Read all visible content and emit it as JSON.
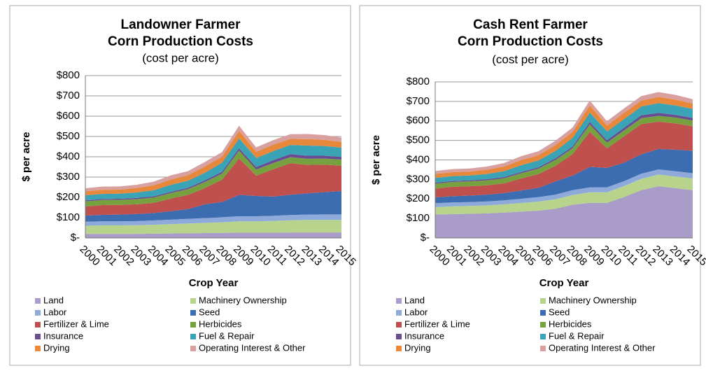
{
  "chart_data": [
    {
      "type": "stacked-area",
      "title": [
        "Landowner Farmer",
        "Corn Production Costs"
      ],
      "subtitle": "(cost per acre)",
      "y_label": "$ per acre",
      "x_label": "Crop Year",
      "categories": [
        "2000",
        "2001",
        "2002",
        "2003",
        "2004",
        "2005",
        "2006",
        "2007",
        "2008",
        "2009",
        "2010",
        "2011",
        "2012",
        "2013",
        "2014",
        "2015"
      ],
      "ylim": [
        0,
        800
      ],
      "yticks": [
        {
          "value": 0,
          "label": "$-"
        },
        {
          "value": 100,
          "label": "$100"
        },
        {
          "value": 200,
          "label": "$200"
        },
        {
          "value": 300,
          "label": "$300"
        },
        {
          "value": 400,
          "label": "$400"
        },
        {
          "value": 500,
          "label": "$500"
        },
        {
          "value": 600,
          "label": "$600"
        },
        {
          "value": 700,
          "label": "$700"
        },
        {
          "value": 800,
          "label": "$800"
        }
      ],
      "grid": true,
      "series": [
        {
          "name": "Land",
          "color": "#a99cc8",
          "values": [
            20,
            20,
            20,
            20,
            21,
            22,
            23,
            24,
            25,
            26,
            26,
            26,
            27,
            27,
            27,
            27
          ]
        },
        {
          "name": "Machinery Ownership",
          "color": "#b8d38c",
          "values": [
            40,
            42,
            42,
            43,
            44,
            46,
            48,
            50,
            52,
            56,
            56,
            58,
            60,
            62,
            62,
            62
          ]
        },
        {
          "name": "Labor",
          "color": "#8eaadb",
          "values": [
            20,
            20,
            20,
            20,
            21,
            22,
            23,
            24,
            25,
            25,
            25,
            25,
            26,
            26,
            27,
            27
          ]
        },
        {
          "name": "Seed",
          "color": "#3d6db1",
          "values": [
            30,
            32,
            33,
            35,
            37,
            42,
            48,
            68,
            75,
            105,
            100,
            95,
            100,
            105,
            110,
            115
          ]
        },
        {
          "name": "Fertilizer & Lime",
          "color": "#c0504d",
          "values": [
            45,
            48,
            48,
            48,
            50,
            62,
            70,
            80,
            110,
            180,
            100,
            135,
            155,
            140,
            135,
            125
          ]
        },
        {
          "name": "Herbicides",
          "color": "#77a13f",
          "values": [
            25,
            25,
            25,
            25,
            26,
            27,
            28,
            30,
            30,
            38,
            30,
            30,
            30,
            30,
            30,
            30
          ]
        },
        {
          "name": "Insurance",
          "color": "#6a4c93",
          "values": [
            5,
            5,
            5,
            6,
            6,
            6,
            7,
            8,
            9,
            12,
            12,
            14,
            15,
            15,
            14,
            13
          ]
        },
        {
          "name": "Fuel & Repair",
          "color": "#3aa3b5",
          "values": [
            25,
            25,
            25,
            27,
            30,
            35,
            35,
            38,
            45,
            48,
            45,
            45,
            45,
            50,
            48,
            46
          ]
        },
        {
          "name": "Drying",
          "color": "#e8883a",
          "values": [
            20,
            20,
            20,
            22,
            24,
            26,
            27,
            30,
            30,
            38,
            30,
            32,
            30,
            32,
            30,
            28
          ]
        },
        {
          "name": "Operating Interest & Other",
          "color": "#d9a0a0",
          "values": [
            15,
            16,
            16,
            16,
            18,
            20,
            20,
            22,
            22,
            25,
            22,
            22,
            23,
            25,
            24,
            22
          ]
        }
      ]
    },
    {
      "type": "stacked-area",
      "title": [
        "Cash Rent Farmer",
        "Corn Production Costs"
      ],
      "subtitle": "(cost per acre)",
      "y_label": "$ per acre",
      "x_label": "Crop Year",
      "categories": [
        "2000",
        "2001",
        "2002",
        "2003",
        "2004",
        "2005",
        "2006",
        "2007",
        "2008",
        "2009",
        "2010",
        "2011",
        "2012",
        "2013",
        "2014",
        "2015"
      ],
      "ylim": [
        0,
        800
      ],
      "yticks": [
        {
          "value": 0,
          "label": "$-"
        },
        {
          "value": 100,
          "label": "$100"
        },
        {
          "value": 200,
          "label": "$200"
        },
        {
          "value": 300,
          "label": "$300"
        },
        {
          "value": 400,
          "label": "$400"
        },
        {
          "value": 500,
          "label": "$500"
        },
        {
          "value": 600,
          "label": "$600"
        },
        {
          "value": 700,
          "label": "$700"
        },
        {
          "value": 800,
          "label": "$800"
        }
      ],
      "grid": true,
      "series": [
        {
          "name": "Land",
          "color": "#a99cc8",
          "values": [
            120,
            122,
            124,
            126,
            130,
            135,
            140,
            150,
            170,
            180,
            180,
            210,
            245,
            265,
            255,
            245
          ]
        },
        {
          "name": "Machinery Ownership",
          "color": "#b8d38c",
          "values": [
            38,
            40,
            40,
            41,
            42,
            44,
            46,
            48,
            50,
            54,
            54,
            56,
            58,
            60,
            60,
            60
          ]
        },
        {
          "name": "Labor",
          "color": "#8eaadb",
          "values": [
            20,
            20,
            20,
            20,
            21,
            22,
            23,
            24,
            25,
            25,
            25,
            25,
            26,
            26,
            27,
            27
          ]
        },
        {
          "name": "Seed",
          "color": "#3d6db1",
          "values": [
            30,
            32,
            33,
            35,
            37,
            42,
            48,
            68,
            75,
            105,
            100,
            95,
            100,
            105,
            110,
            115
          ]
        },
        {
          "name": "Fertilizer & Lime",
          "color": "#c0504d",
          "values": [
            45,
            48,
            48,
            48,
            50,
            62,
            70,
            80,
            110,
            180,
            100,
            135,
            155,
            140,
            135,
            125
          ]
        },
        {
          "name": "Herbicides",
          "color": "#77a13f",
          "values": [
            25,
            25,
            25,
            25,
            26,
            27,
            28,
            30,
            30,
            38,
            30,
            30,
            30,
            30,
            30,
            30
          ]
        },
        {
          "name": "Insurance",
          "color": "#6a4c93",
          "values": [
            5,
            5,
            5,
            6,
            6,
            6,
            7,
            8,
            9,
            12,
            12,
            14,
            15,
            15,
            14,
            13
          ]
        },
        {
          "name": "Fuel & Repair",
          "color": "#3aa3b5",
          "values": [
            25,
            25,
            25,
            27,
            30,
            35,
            35,
            38,
            45,
            48,
            45,
            45,
            45,
            50,
            48,
            46
          ]
        },
        {
          "name": "Drying",
          "color": "#e8883a",
          "values": [
            20,
            20,
            20,
            22,
            24,
            26,
            27,
            30,
            30,
            38,
            30,
            32,
            30,
            32,
            30,
            28
          ]
        },
        {
          "name": "Operating Interest & Other",
          "color": "#d9a0a0",
          "values": [
            15,
            16,
            16,
            16,
            18,
            20,
            20,
            22,
            22,
            25,
            22,
            22,
            23,
            25,
            24,
            22
          ]
        }
      ]
    }
  ]
}
